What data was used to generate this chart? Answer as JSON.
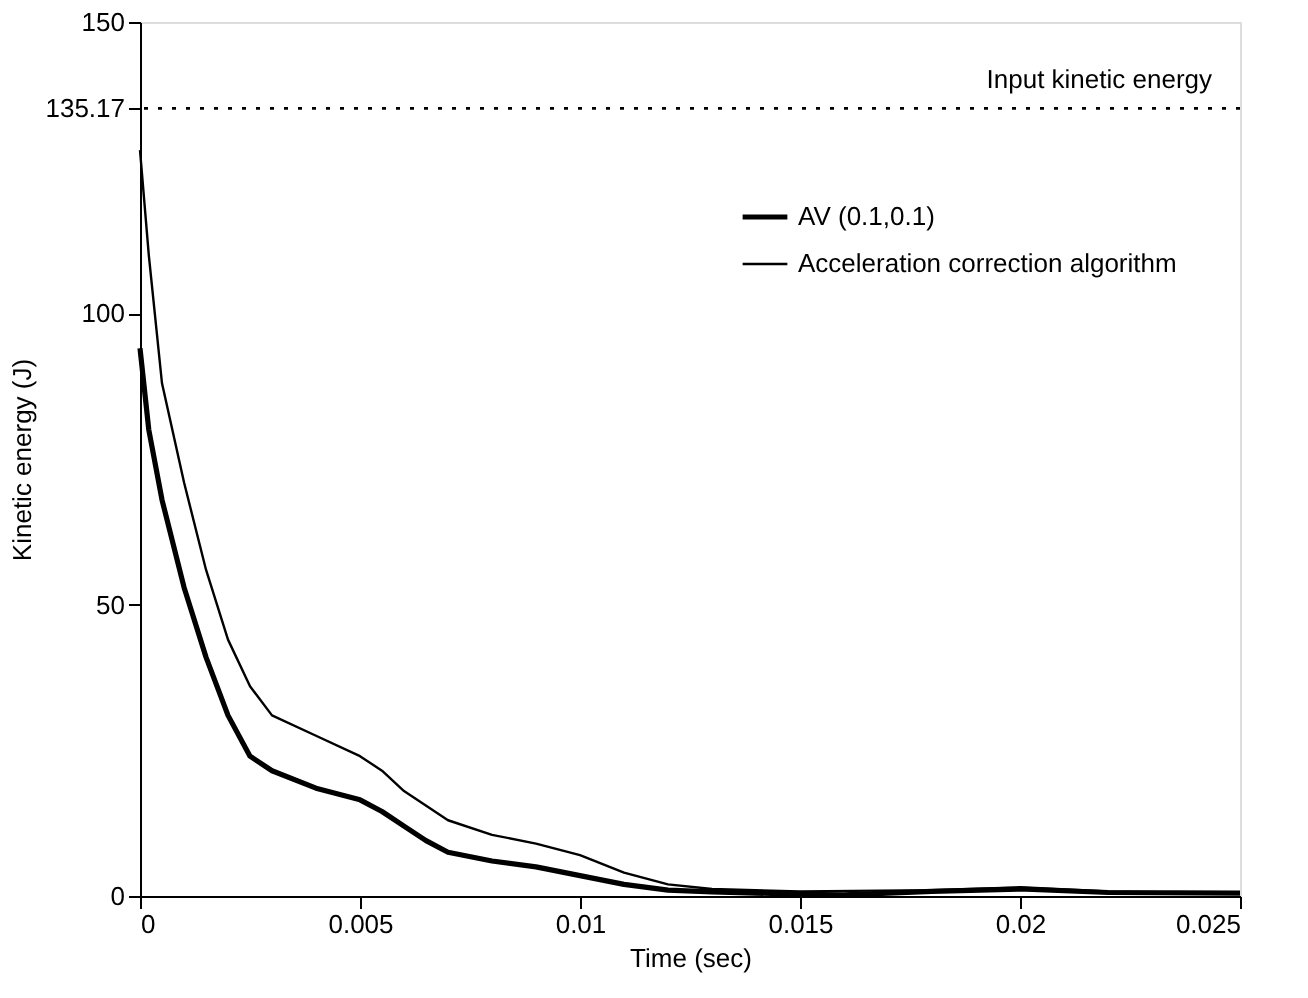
{
  "chart_data": {
    "type": "line",
    "xlabel": "Time (sec)",
    "ylabel": "Kinetic energy (J)",
    "xlim": [
      0,
      0.025
    ],
    "xticks": [
      0,
      0.005,
      0.01,
      0.015,
      0.02,
      0.025
    ],
    "ylim": [
      0,
      150
    ],
    "yticks": [
      0,
      50,
      100,
      135.17,
      150
    ],
    "grid": false,
    "legend": "top right",
    "line_style": "solid",
    "ref_lines": [
      {
        "axis": "y",
        "value": 135.17,
        "label": "Input kinetic energy",
        "line_style": "dotted",
        "color": "#000000"
      }
    ],
    "series": [
      {
        "name": "AV (0.1,0.1)",
        "color": "#000000",
        "x": [
          0,
          0.0002,
          0.0005,
          0.001,
          0.0015,
          0.002,
          0.0025,
          0.003,
          0.004,
          0.005,
          0.0055,
          0.006,
          0.0065,
          0.007,
          0.008,
          0.009,
          0.01,
          0.011,
          0.012,
          0.013,
          0.015,
          0.016,
          0.018,
          0.02,
          0.022,
          0.025
        ],
        "values": [
          94,
          80,
          68,
          53,
          41,
          31,
          24,
          21.5,
          18.5,
          16.5,
          14.5,
          12,
          9.5,
          7.5,
          6,
          5,
          3.5,
          2,
          1,
          0.7,
          0.3,
          0.2,
          0.8,
          1.2,
          0.6,
          0.5
        ]
      },
      {
        "name": "Acceleration correction algorithm",
        "color": "#000000",
        "x": [
          0,
          0.0002,
          0.0005,
          0.001,
          0.0015,
          0.002,
          0.0025,
          0.003,
          0.004,
          0.005,
          0.0055,
          0.006,
          0.007,
          0.008,
          0.009,
          0.01,
          0.011,
          0.012,
          0.013,
          0.015,
          0.018,
          0.02,
          0.022,
          0.025
        ],
        "values": [
          128,
          110,
          88,
          71,
          56,
          44,
          36,
          31,
          27.5,
          24,
          21.5,
          18,
          13,
          10.5,
          9,
          7,
          4,
          2,
          1.2,
          0.8,
          1,
          1.5,
          0.8,
          0.5
        ]
      }
    ]
  }
}
